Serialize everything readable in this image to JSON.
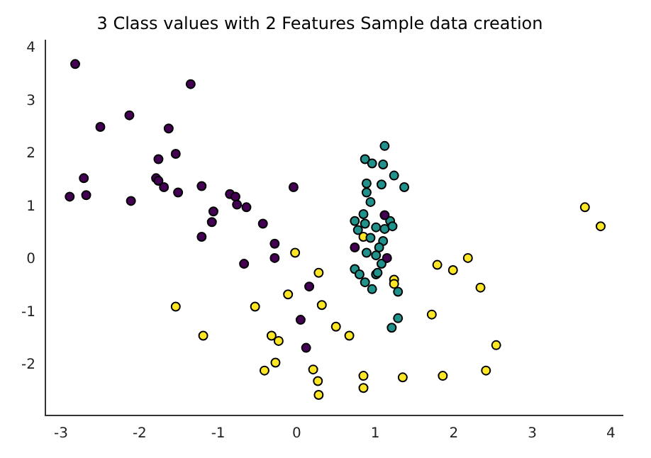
{
  "chart_data": {
    "type": "scatter",
    "title": "3 Class values with 2 Features Sample data creation",
    "marker": "circle",
    "grid": false,
    "legend": false,
    "xlim": [
      -3.2,
      4.15
    ],
    "ylim": [
      -2.95,
      4.15
    ],
    "xticks": [
      -3,
      -2,
      -1,
      0,
      1,
      2,
      3,
      4
    ],
    "yticks": [
      -2,
      -1,
      0,
      1,
      2,
      3,
      4
    ],
    "series": [
      {
        "color": "#440154",
        "x": [
          -2.82,
          -1.35,
          -2.5,
          -2.13,
          -1.63,
          -1.54,
          -1.76,
          -2.71,
          -2.89,
          -2.68,
          -2.11,
          -1.79,
          -1.76,
          -1.69,
          -1.51,
          -1.21,
          -0.85,
          -0.78,
          -0.76,
          -0.64,
          -1.06,
          -1.08,
          -1.21,
          -0.43,
          -0.28,
          -0.04,
          -0.28,
          1.12,
          0.74,
          1.15,
          -0.67,
          0.16,
          0.05,
          0.12
        ],
        "values": [
          3.7,
          3.32,
          2.51,
          2.73,
          2.48,
          2.0,
          1.9,
          1.54,
          1.19,
          1.22,
          1.11,
          1.54,
          1.49,
          1.37,
          1.27,
          1.39,
          1.24,
          1.19,
          1.04,
          0.99,
          0.91,
          0.71,
          0.43,
          0.68,
          0.3,
          1.37,
          0.03,
          0.84,
          0.23,
          0.03,
          -0.08,
          -0.51,
          -1.14,
          -1.67
        ]
      },
      {
        "color": "#21918c",
        "x": [
          1.12,
          0.87,
          0.96,
          1.1,
          1.24,
          1.37,
          0.89,
          1.08,
          0.89,
          0.94,
          0.85,
          0.74,
          0.87,
          0.78,
          1.01,
          1.12,
          1.19,
          1.22,
          0.94,
          1.1,
          1.05,
          0.89,
          1.01,
          1.08,
          0.74,
          0.8,
          1.01,
          0.87,
          0.96,
          1.03,
          1.29,
          1.29,
          1.21
        ],
        "values": [
          2.15,
          1.9,
          1.82,
          1.8,
          1.59,
          1.37,
          1.44,
          1.42,
          1.27,
          1.09,
          0.86,
          0.73,
          0.68,
          0.56,
          0.61,
          0.58,
          0.73,
          0.63,
          0.41,
          0.35,
          0.23,
          0.13,
          0.08,
          -0.08,
          -0.18,
          -0.28,
          -0.28,
          -0.43,
          -0.56,
          -0.25,
          -0.61,
          -1.11,
          -1.29
        ]
      },
      {
        "color": "#fde725",
        "x": [
          0.85,
          -0.02,
          0.28,
          -0.11,
          0.32,
          -0.53,
          -1.54,
          0.5,
          0.67,
          -1.19,
          -0.32,
          -0.23,
          -0.27,
          -0.41,
          0.21,
          0.27,
          0.28,
          0.85,
          0.85,
          1.35,
          1.24,
          1.24,
          1.79,
          1.99,
          3.67,
          3.87,
          2.18,
          2.34,
          1.72,
          2.54,
          2.41,
          1.86
        ],
        "values": [
          0.43,
          0.13,
          -0.25,
          -0.66,
          -0.86,
          -0.89,
          -0.89,
          -1.27,
          -1.44,
          -1.44,
          -1.44,
          -1.54,
          -1.95,
          -2.1,
          -2.08,
          -2.3,
          -2.56,
          -2.2,
          -2.43,
          -2.23,
          -0.38,
          -0.46,
          -0.1,
          -0.2,
          0.99,
          0.63,
          0.03,
          -0.53,
          -1.04,
          -1.62,
          -2.1,
          -2.2
        ]
      }
    ]
  }
}
